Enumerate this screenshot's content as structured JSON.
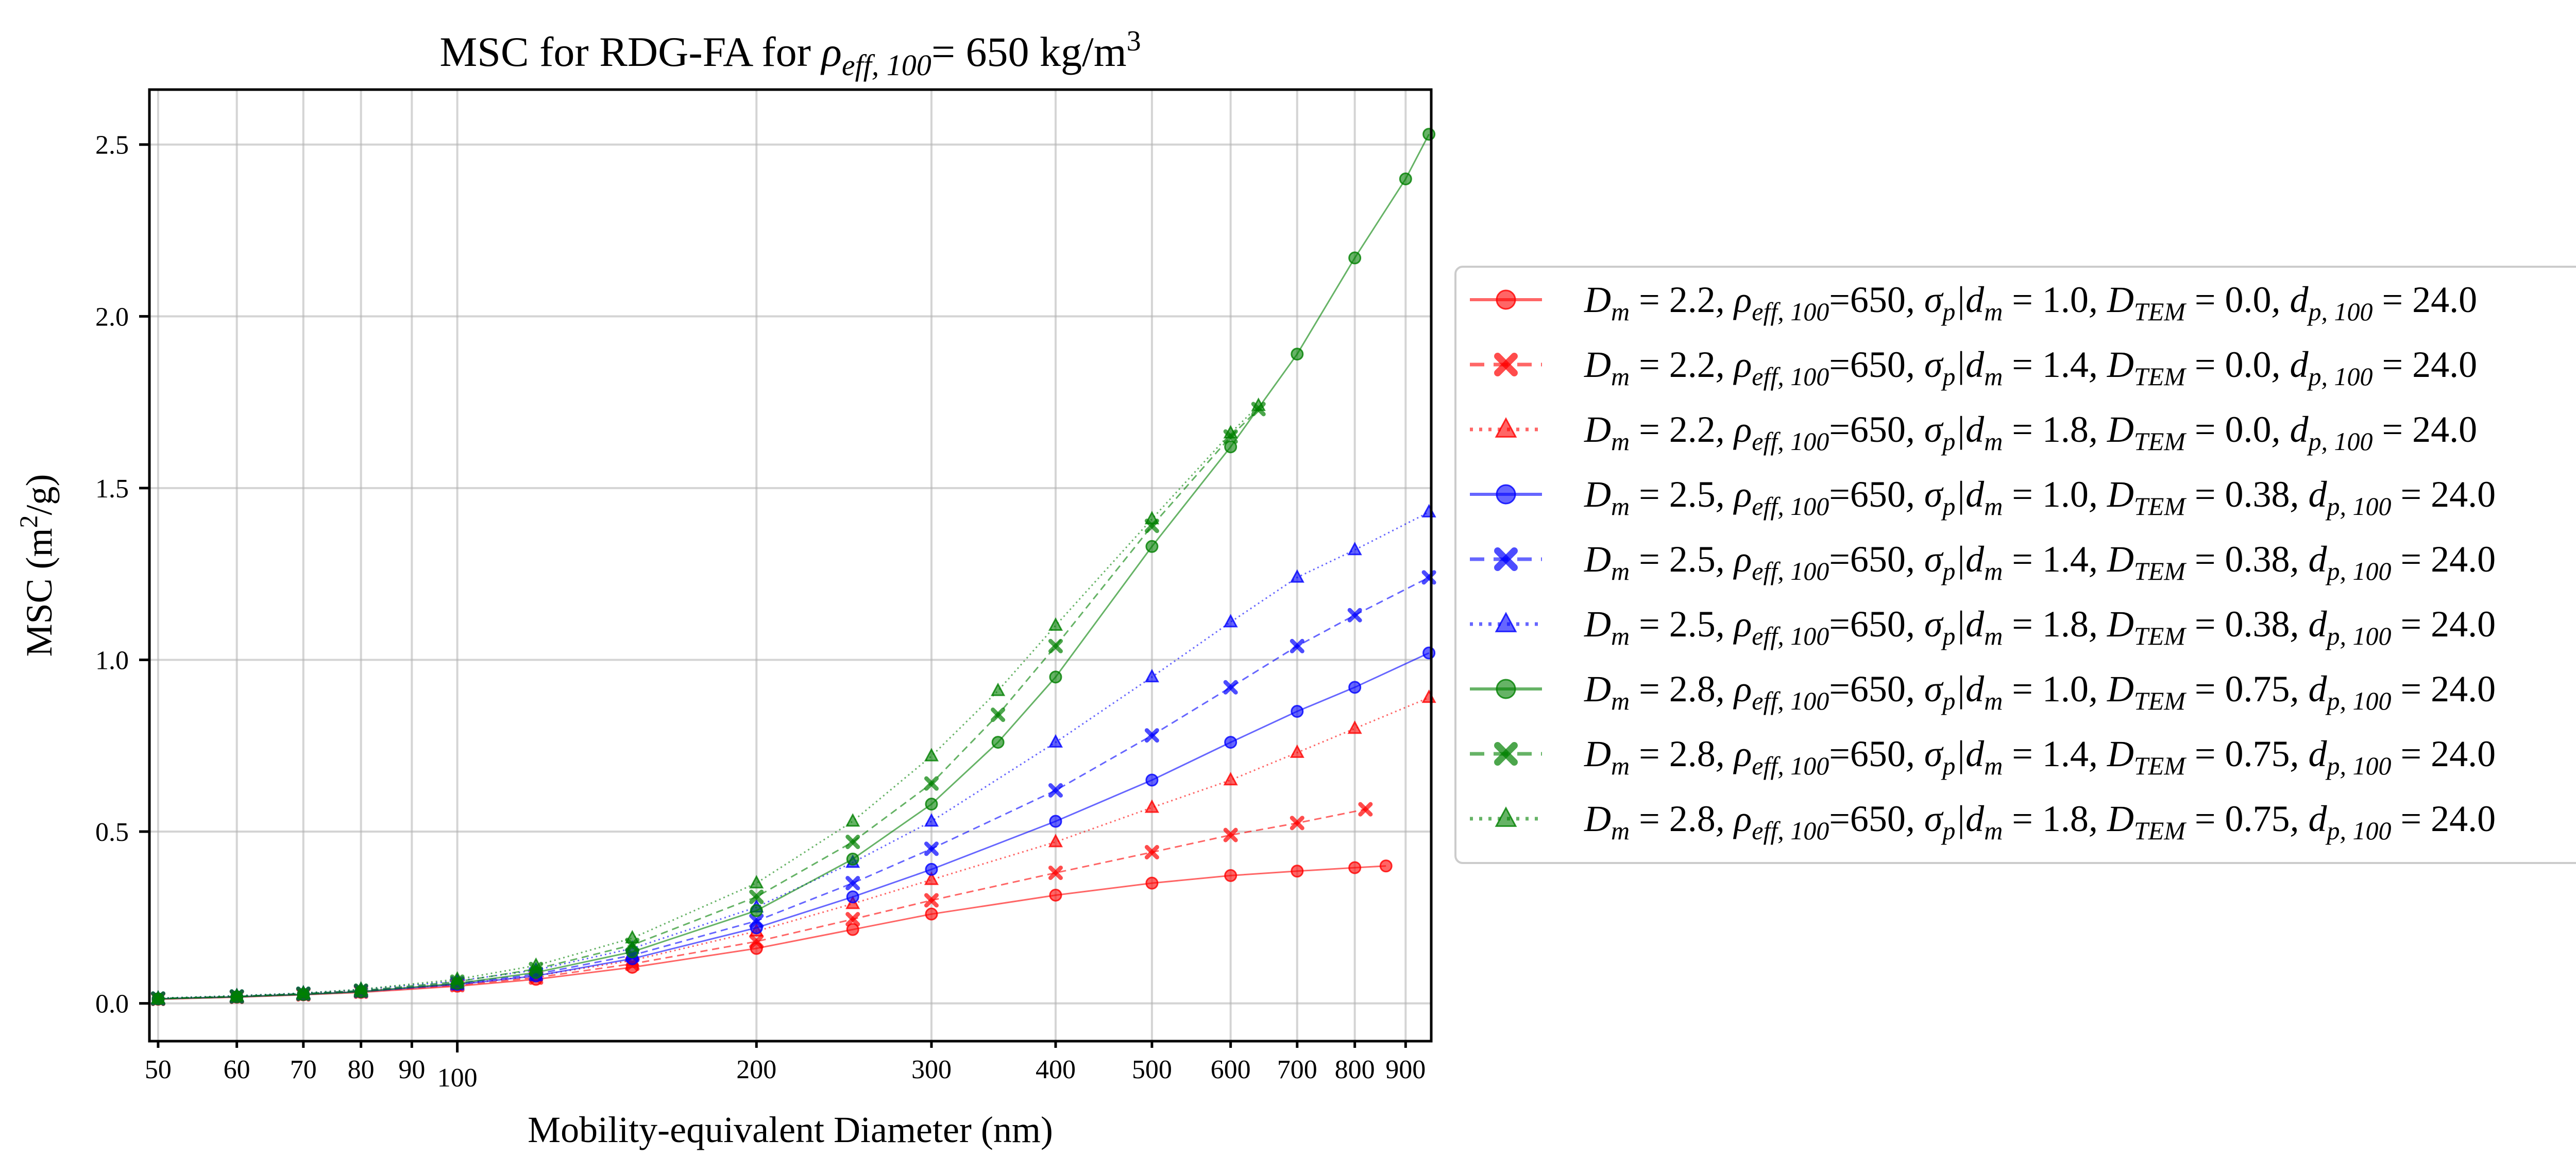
{
  "chart_data": {
    "type": "line",
    "title": "MSC for RDG-FA for ρeff,100= 650 kg/m3",
    "title_parts": {
      "prefix": "MSC for RDG-FA for ",
      "symbol": "ρ",
      "subscript": "eff, 100",
      "suffix": "= 650 kg/m",
      "superscript": "3"
    },
    "xlabel": "Mobility-equivalent Diameter (nm)",
    "ylabel": "MSC (m2/g)",
    "ylabel_parts": {
      "prefix": "MSC (m",
      "superscript": "2",
      "suffix": "/g)"
    },
    "xscale": "log",
    "xlim": [
      49,
      955
    ],
    "ylim": [
      -0.11,
      2.66
    ],
    "grid": true,
    "legend_position": "outside-right",
    "x_ticks": [
      {
        "value": 50,
        "label": "50"
      },
      {
        "value": 60,
        "label": "60"
      },
      {
        "value": 70,
        "label": "70"
      },
      {
        "value": 80,
        "label": "80"
      },
      {
        "value": 90,
        "label": "90"
      },
      {
        "value": 100,
        "label": "100"
      },
      {
        "value": 200,
        "label": "200"
      },
      {
        "value": 300,
        "label": "300"
      },
      {
        "value": 400,
        "label": "400"
      },
      {
        "value": 500,
        "label": "500"
      },
      {
        "value": 600,
        "label": "600"
      },
      {
        "value": 700,
        "label": "700"
      },
      {
        "value": 800,
        "label": "800"
      },
      {
        "value": 900,
        "label": "900"
      }
    ],
    "y_ticks": [
      {
        "value": 0.0,
        "label": "0.0"
      },
      {
        "value": 0.5,
        "label": "0.5"
      },
      {
        "value": 1.0,
        "label": "1.0"
      },
      {
        "value": 1.5,
        "label": "1.5"
      },
      {
        "value": 2.0,
        "label": "2.0"
      },
      {
        "value": 2.5,
        "label": "2.5"
      }
    ],
    "series": [
      {
        "name": "Dm=2.2, ρeff,100=650, σp|dm=1.0, DTEM=0.0, dp,100=24.0",
        "color": "#ff0000",
        "marker": "circle",
        "linestyle": "solid",
        "x": [
          50,
          60,
          70,
          80,
          100,
          120,
          150,
          200,
          250,
          300,
          400,
          500,
          600,
          700,
          800,
          860
        ],
        "y": [
          0.012,
          0.018,
          0.025,
          0.032,
          0.05,
          0.07,
          0.105,
          0.16,
          0.215,
          0.26,
          0.315,
          0.35,
          0.372,
          0.385,
          0.395,
          0.4
        ]
      },
      {
        "name": "Dm=2.2, ρeff,100=650, σp|dm=1.4, DTEM=0.0, dp,100=24.0",
        "color": "#ff0000",
        "marker": "x",
        "linestyle": "dashed",
        "x": [
          50,
          60,
          70,
          80,
          100,
          120,
          150,
          200,
          250,
          300,
          400,
          500,
          600,
          700,
          820
        ],
        "y": [
          0.013,
          0.019,
          0.026,
          0.034,
          0.053,
          0.075,
          0.115,
          0.18,
          0.245,
          0.3,
          0.38,
          0.44,
          0.49,
          0.525,
          0.565
        ]
      },
      {
        "name": "Dm=2.2, ρeff,100=650, σp|dm=1.8, DTEM=0.0, dp,100=24.0",
        "color": "#ff0000",
        "marker": "triangle",
        "linestyle": "dotted",
        "x": [
          50,
          60,
          70,
          80,
          100,
          120,
          150,
          200,
          250,
          300,
          400,
          500,
          600,
          700,
          800,
          950
        ],
        "y": [
          0.014,
          0.02,
          0.028,
          0.036,
          0.056,
          0.08,
          0.125,
          0.21,
          0.29,
          0.36,
          0.47,
          0.57,
          0.65,
          0.73,
          0.8,
          0.89
        ]
      },
      {
        "name": "Dm=2.5, ρeff,100=650, σp|dm=1.0, DTEM=0.38, dp,100=24.0",
        "color": "#0000ff",
        "marker": "circle",
        "linestyle": "solid",
        "x": [
          50,
          60,
          70,
          80,
          100,
          120,
          150,
          200,
          250,
          300,
          400,
          500,
          600,
          700,
          800,
          950
        ],
        "y": [
          0.013,
          0.019,
          0.026,
          0.034,
          0.055,
          0.08,
          0.13,
          0.22,
          0.31,
          0.39,
          0.53,
          0.65,
          0.76,
          0.85,
          0.92,
          1.02
        ]
      },
      {
        "name": "Dm=2.5, ρeff,100=650, σp|dm=1.4, DTEM=0.38, dp,100=24.0",
        "color": "#0000ff",
        "marker": "x",
        "linestyle": "dashed",
        "x": [
          50,
          60,
          70,
          80,
          100,
          120,
          150,
          200,
          250,
          300,
          400,
          500,
          600,
          700,
          800,
          950
        ],
        "y": [
          0.014,
          0.02,
          0.028,
          0.036,
          0.058,
          0.085,
          0.14,
          0.24,
          0.35,
          0.45,
          0.62,
          0.78,
          0.92,
          1.04,
          1.13,
          1.24
        ]
      },
      {
        "name": "Dm=2.5, ρeff,100=650, σp|dm=1.8, DTEM=0.38, dp,100=24.0",
        "color": "#0000ff",
        "marker": "triangle",
        "linestyle": "dotted",
        "x": [
          50,
          60,
          70,
          80,
          100,
          120,
          150,
          200,
          250,
          300,
          400,
          500,
          600,
          700,
          800,
          950
        ],
        "y": [
          0.015,
          0.022,
          0.03,
          0.04,
          0.065,
          0.097,
          0.16,
          0.28,
          0.41,
          0.53,
          0.76,
          0.95,
          1.11,
          1.24,
          1.32,
          1.43
        ]
      },
      {
        "name": "Dm=2.8, ρeff,100=650, σp|dm=1.0, DTEM=0.75, dp,100=24.0",
        "color": "#008000",
        "marker": "circle",
        "linestyle": "solid",
        "x": [
          50,
          60,
          70,
          80,
          100,
          120,
          150,
          200,
          250,
          300,
          350,
          400,
          500,
          600,
          700,
          800,
          900,
          950
        ],
        "y": [
          0.013,
          0.019,
          0.026,
          0.034,
          0.058,
          0.09,
          0.15,
          0.27,
          0.42,
          0.58,
          0.76,
          0.95,
          1.33,
          1.62,
          1.89,
          2.17,
          2.4,
          2.53
        ]
      },
      {
        "name": "Dm=2.8, ρeff,100=650, σp|dm=1.4, DTEM=0.75, dp,100=24.0",
        "color": "#008000",
        "marker": "x",
        "linestyle": "dashed",
        "x": [
          50,
          60,
          70,
          80,
          100,
          120,
          150,
          200,
          250,
          300,
          350,
          400,
          500,
          600,
          640
        ],
        "y": [
          0.014,
          0.02,
          0.028,
          0.037,
          0.063,
          0.1,
          0.17,
          0.31,
          0.47,
          0.64,
          0.84,
          1.04,
          1.39,
          1.65,
          1.73
        ]
      },
      {
        "name": "Dm=2.8, ρeff,100=650, σp|dm=1.8, DTEM=0.75, dp,100=24.0",
        "color": "#008000",
        "marker": "triangle",
        "linestyle": "dotted",
        "x": [
          50,
          60,
          70,
          80,
          100,
          120,
          150,
          200,
          250,
          300,
          350,
          400,
          500,
          600,
          640
        ],
        "y": [
          0.015,
          0.022,
          0.03,
          0.041,
          0.07,
          0.11,
          0.19,
          0.35,
          0.53,
          0.72,
          0.91,
          1.1,
          1.41,
          1.66,
          1.74
        ]
      }
    ],
    "legend_entries": [
      {
        "dm": "2.2",
        "rho": "650",
        "sigma": "1.0",
        "dtem": "0.0",
        "dp": "24.0"
      },
      {
        "dm": "2.2",
        "rho": "650",
        "sigma": "1.4",
        "dtem": "0.0",
        "dp": "24.0"
      },
      {
        "dm": "2.2",
        "rho": "650",
        "sigma": "1.8",
        "dtem": "0.0",
        "dp": "24.0"
      },
      {
        "dm": "2.5",
        "rho": "650",
        "sigma": "1.0",
        "dtem": "0.38",
        "dp": "24.0"
      },
      {
        "dm": "2.5",
        "rho": "650",
        "sigma": "1.4",
        "dtem": "0.38",
        "dp": "24.0"
      },
      {
        "dm": "2.5",
        "rho": "650",
        "sigma": "1.8",
        "dtem": "0.38",
        "dp": "24.0"
      },
      {
        "dm": "2.8",
        "rho": "650",
        "sigma": "1.0",
        "dtem": "0.75",
        "dp": "24.0"
      },
      {
        "dm": "2.8",
        "rho": "650",
        "sigma": "1.4",
        "dtem": "0.75",
        "dp": "24.0"
      },
      {
        "dm": "2.8",
        "rho": "650",
        "sigma": "1.8",
        "dtem": "0.75",
        "dp": "24.0"
      }
    ]
  }
}
